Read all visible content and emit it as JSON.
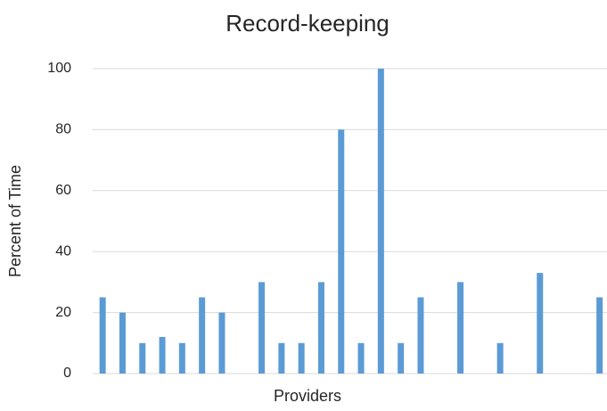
{
  "chart_data": {
    "type": "bar",
    "title": "Record-keeping",
    "x_label": "Providers",
    "y_label": "Percent of Time",
    "categories": [
      null,
      null,
      null,
      null,
      null,
      null,
      null,
      null,
      null,
      null,
      null,
      null,
      null,
      null,
      null,
      null,
      null,
      null,
      null,
      null,
      null,
      null,
      null,
      null,
      null,
      null
    ],
    "values": [
      25,
      20,
      10,
      12,
      10,
      25,
      20,
      0,
      30,
      10,
      10,
      30,
      80,
      10,
      100,
      10,
      25,
      0,
      30,
      0,
      10,
      0,
      33,
      0,
      0,
      25
    ],
    "color": "#5b9bd5",
    "ylim": [
      0,
      100
    ],
    "yticks": [
      0,
      20,
      40,
      60,
      80,
      100
    ],
    "grid": true
  }
}
